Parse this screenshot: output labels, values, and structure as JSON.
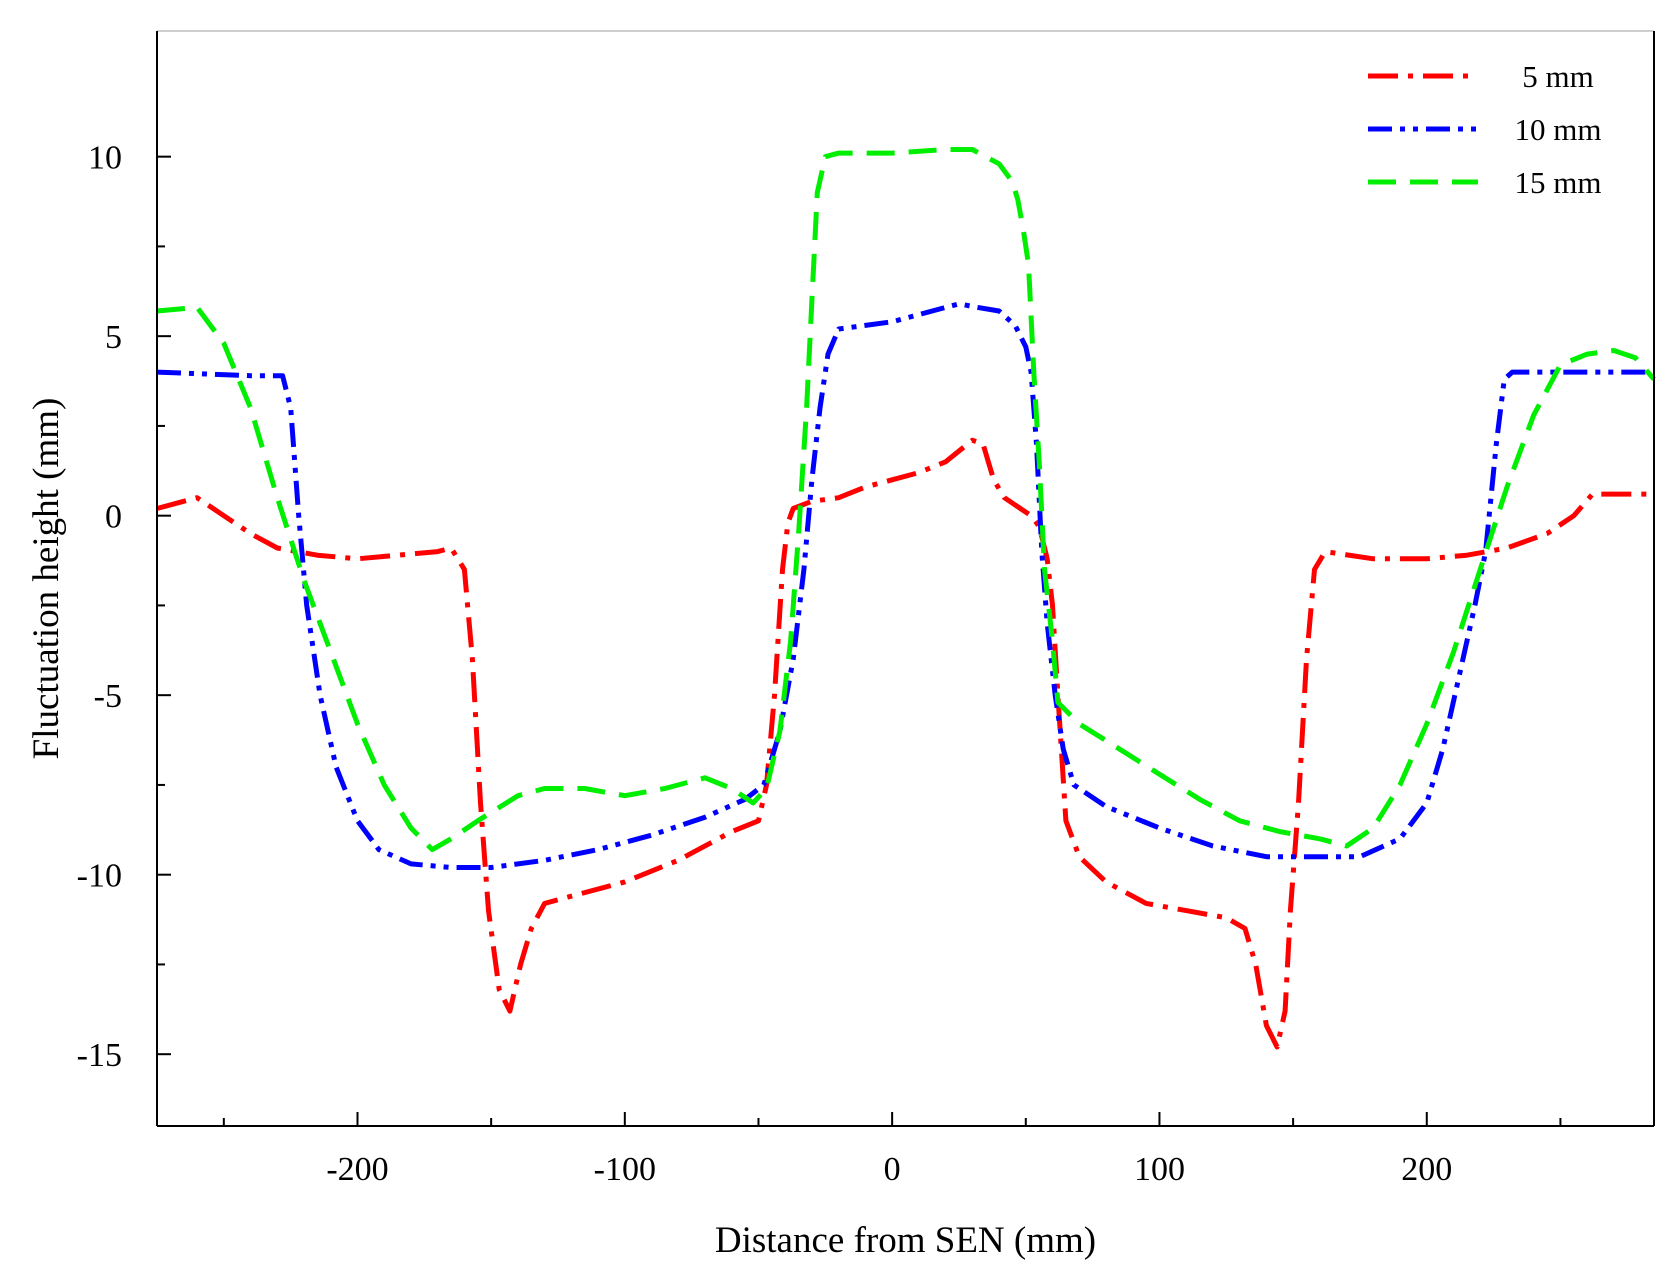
{
  "chart_data": {
    "type": "line",
    "title": "",
    "xlabel": "Distance from SEN (mm)",
    "ylabel": "Fluctuation height (mm)",
    "xlim": [
      -275,
      285
    ],
    "ylim": [
      -17,
      13.5
    ],
    "xticks": [
      -200,
      -100,
      0,
      100,
      200
    ],
    "yticks": [
      10,
      5,
      0,
      -5,
      -10,
      -15
    ],
    "legend_position": "top-right",
    "series": [
      {
        "name": "5 mm",
        "color": "#ff0000",
        "dash": "dash-dot",
        "points": [
          [
            -275,
            0.2
          ],
          [
            -260,
            0.5
          ],
          [
            -250,
            0
          ],
          [
            -240,
            -0.5
          ],
          [
            -230,
            -0.9
          ],
          [
            -215,
            -1.1
          ],
          [
            -200,
            -1.2
          ],
          [
            -185,
            -1.1
          ],
          [
            -170,
            -1.0
          ],
          [
            -165,
            -0.9
          ],
          [
            -160,
            -1.5
          ],
          [
            -157,
            -4
          ],
          [
            -154,
            -8
          ],
          [
            -151,
            -11
          ],
          [
            -147,
            -13.2
          ],
          [
            -143,
            -13.8
          ],
          [
            -139,
            -12.5
          ],
          [
            -135,
            -11.5
          ],
          [
            -130,
            -10.8
          ],
          [
            -120,
            -10.6
          ],
          [
            -100,
            -10.2
          ],
          [
            -80,
            -9.6
          ],
          [
            -60,
            -8.8
          ],
          [
            -50,
            -8.5
          ],
          [
            -47,
            -7.5
          ],
          [
            -44,
            -5
          ],
          [
            -41,
            -1.5
          ],
          [
            -39,
            -0.2
          ],
          [
            -37,
            0.2
          ],
          [
            -30,
            0.4
          ],
          [
            -20,
            0.5
          ],
          [
            -10,
            0.8
          ],
          [
            0,
            1.0
          ],
          [
            10,
            1.2
          ],
          [
            20,
            1.5
          ],
          [
            25,
            1.8
          ],
          [
            30,
            2.1
          ],
          [
            34,
            2.0
          ],
          [
            38,
            1.0
          ],
          [
            42,
            0.5
          ],
          [
            48,
            0.2
          ],
          [
            52,
            0
          ],
          [
            55,
            -0.3
          ],
          [
            58,
            -1.2
          ],
          [
            60,
            -2.5
          ],
          [
            62,
            -5
          ],
          [
            65,
            -8.5
          ],
          [
            70,
            -9.5
          ],
          [
            80,
            -10.2
          ],
          [
            95,
            -10.8
          ],
          [
            110,
            -11.0
          ],
          [
            125,
            -11.2
          ],
          [
            132,
            -11.5
          ],
          [
            136,
            -12.5
          ],
          [
            140,
            -14.2
          ],
          [
            144,
            -14.8
          ],
          [
            147,
            -13.8
          ],
          [
            149,
            -11
          ],
          [
            152,
            -8
          ],
          [
            155,
            -4
          ],
          [
            158,
            -1.5
          ],
          [
            162,
            -1.0
          ],
          [
            180,
            -1.2
          ],
          [
            200,
            -1.2
          ],
          [
            215,
            -1.1
          ],
          [
            230,
            -0.9
          ],
          [
            245,
            -0.5
          ],
          [
            255,
            0
          ],
          [
            262,
            0.6
          ],
          [
            275,
            0.6
          ],
          [
            285,
            0.6
          ]
        ]
      },
      {
        "name": "10 mm",
        "color": "#0000ff",
        "dash": "dash-dot-dot",
        "points": [
          [
            -275,
            4.0
          ],
          [
            -240,
            3.9
          ],
          [
            -228,
            3.9
          ],
          [
            -225,
            3
          ],
          [
            -222,
            0
          ],
          [
            -219,
            -2.5
          ],
          [
            -214,
            -5
          ],
          [
            -208,
            -7
          ],
          [
            -200,
            -8.5
          ],
          [
            -192,
            -9.3
          ],
          [
            -180,
            -9.7
          ],
          [
            -165,
            -9.8
          ],
          [
            -150,
            -9.8
          ],
          [
            -130,
            -9.6
          ],
          [
            -110,
            -9.3
          ],
          [
            -90,
            -8.9
          ],
          [
            -70,
            -8.4
          ],
          [
            -55,
            -7.9
          ],
          [
            -48,
            -7.5
          ],
          [
            -42,
            -6
          ],
          [
            -37,
            -4
          ],
          [
            -33,
            -1.5
          ],
          [
            -30,
            1
          ],
          [
            -27,
            3
          ],
          [
            -24,
            4.5
          ],
          [
            -20,
            5.2
          ],
          [
            -10,
            5.3
          ],
          [
            0,
            5.4
          ],
          [
            10,
            5.6
          ],
          [
            20,
            5.8
          ],
          [
            25,
            5.9
          ],
          [
            32,
            5.8
          ],
          [
            40,
            5.7
          ],
          [
            46,
            5.3
          ],
          [
            50,
            4.7
          ],
          [
            52,
            4
          ],
          [
            54,
            2
          ],
          [
            56,
            -1
          ],
          [
            58,
            -3
          ],
          [
            61,
            -5
          ],
          [
            64,
            -6.5
          ],
          [
            68,
            -7.5
          ],
          [
            80,
            -8.1
          ],
          [
            100,
            -8.7
          ],
          [
            120,
            -9.2
          ],
          [
            140,
            -9.5
          ],
          [
            160,
            -9.5
          ],
          [
            175,
            -9.5
          ],
          [
            190,
            -9.0
          ],
          [
            200,
            -8.0
          ],
          [
            206,
            -6.5
          ],
          [
            212,
            -4.5
          ],
          [
            218,
            -2.5
          ],
          [
            222,
            -1
          ],
          [
            226,
            2
          ],
          [
            229,
            3.8
          ],
          [
            232,
            4.0
          ],
          [
            260,
            4.0
          ],
          [
            285,
            4.0
          ]
        ]
      },
      {
        "name": "15 mm",
        "color": "#00ee00",
        "dash": "dashed",
        "points": [
          [
            -275,
            5.7
          ],
          [
            -260,
            5.8
          ],
          [
            -250,
            4.8
          ],
          [
            -240,
            3
          ],
          [
            -230,
            0.5
          ],
          [
            -220,
            -1.8
          ],
          [
            -210,
            -3.8
          ],
          [
            -200,
            -5.8
          ],
          [
            -190,
            -7.5
          ],
          [
            -180,
            -8.7
          ],
          [
            -172,
            -9.3
          ],
          [
            -165,
            -9.0
          ],
          [
            -155,
            -8.5
          ],
          [
            -140,
            -7.8
          ],
          [
            -130,
            -7.6
          ],
          [
            -115,
            -7.6
          ],
          [
            -100,
            -7.8
          ],
          [
            -85,
            -7.6
          ],
          [
            -70,
            -7.3
          ],
          [
            -60,
            -7.6
          ],
          [
            -52,
            -8.0
          ],
          [
            -47,
            -7.6
          ],
          [
            -42,
            -6
          ],
          [
            -38,
            -3.5
          ],
          [
            -35,
            -0.5
          ],
          [
            -32,
            3
          ],
          [
            -30,
            6
          ],
          [
            -28,
            9
          ],
          [
            -25,
            10.0
          ],
          [
            -20,
            10.1
          ],
          [
            0,
            10.1
          ],
          [
            20,
            10.2
          ],
          [
            30,
            10.2
          ],
          [
            40,
            9.8
          ],
          [
            45,
            9.3
          ],
          [
            47,
            8.8
          ],
          [
            49,
            8
          ],
          [
            51,
            7
          ],
          [
            53,
            4
          ],
          [
            55,
            1.5
          ],
          [
            57,
            -1.5
          ],
          [
            60,
            -3.5
          ],
          [
            62,
            -5.2
          ],
          [
            70,
            -5.8
          ],
          [
            85,
            -6.5
          ],
          [
            100,
            -7.2
          ],
          [
            115,
            -7.9
          ],
          [
            130,
            -8.5
          ],
          [
            145,
            -8.8
          ],
          [
            160,
            -9.0
          ],
          [
            170,
            -9.2
          ],
          [
            180,
            -8.7
          ],
          [
            190,
            -7.5
          ],
          [
            200,
            -5.8
          ],
          [
            210,
            -3.8
          ],
          [
            220,
            -1.5
          ],
          [
            230,
            0.8
          ],
          [
            240,
            2.8
          ],
          [
            250,
            4.2
          ],
          [
            260,
            4.5
          ],
          [
            270,
            4.6
          ],
          [
            278,
            4.4
          ],
          [
            285,
            3.8
          ]
        ]
      }
    ]
  }
}
